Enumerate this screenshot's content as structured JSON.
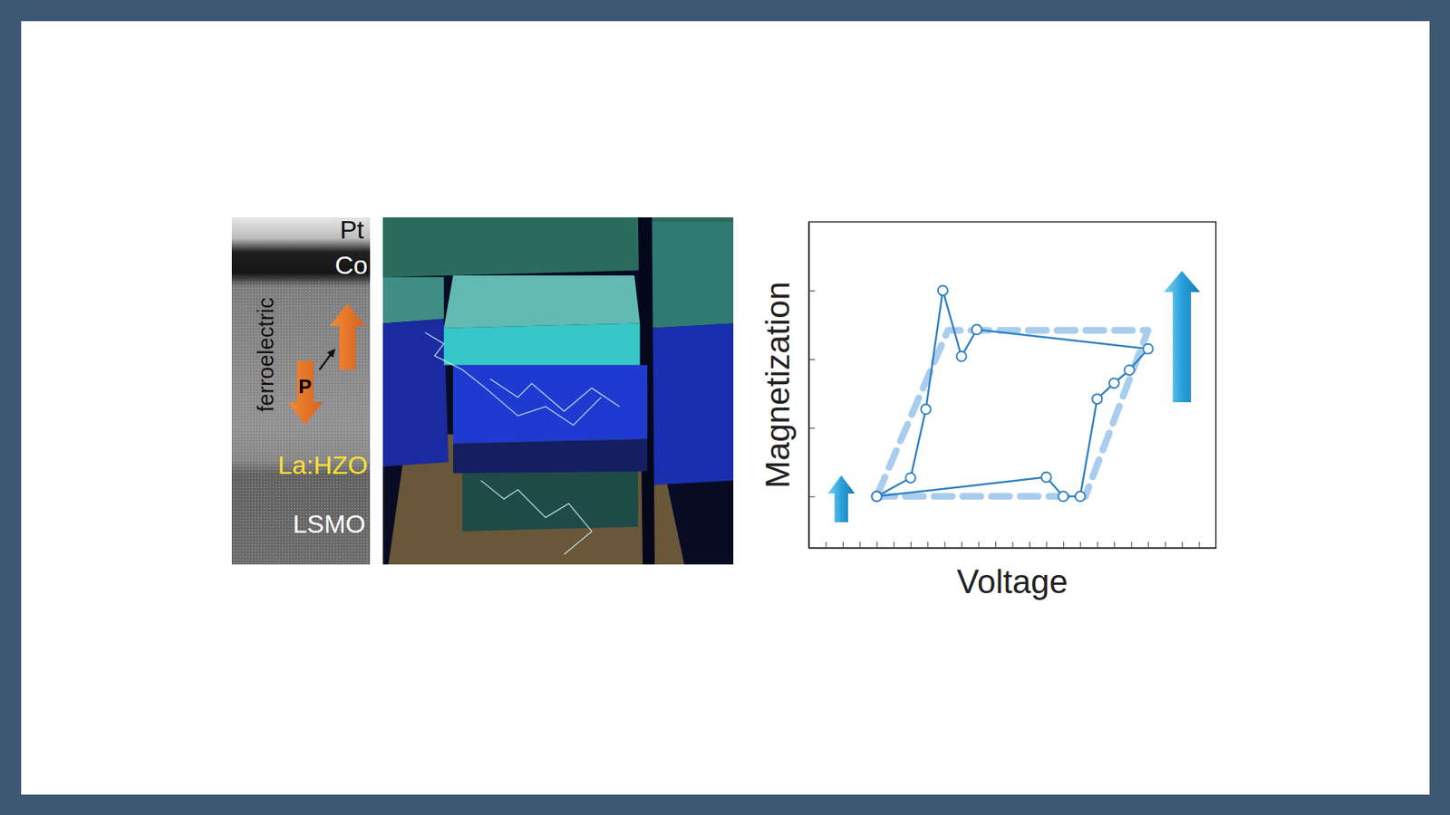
{
  "chart_data": {
    "type": "line",
    "xlabel": "Voltage",
    "ylabel": "Magnetization",
    "xlim": [
      -12,
      12
    ],
    "xticks": [
      -11,
      -10,
      -9,
      -8,
      -7,
      -6,
      -5,
      -4,
      -3,
      -2,
      -1,
      0,
      1,
      2,
      3,
      4,
      5,
      6,
      7,
      8,
      9,
      10,
      11
    ],
    "ylim": [
      -0.75,
      4
    ],
    "yticks": [
      0,
      1,
      2,
      3
    ],
    "tick_labels": false,
    "grid": false,
    "series": [
      {
        "x": [
          -8,
          4.3,
          8,
          -3.8,
          -8
        ],
        "values": [
          0,
          0,
          2.42,
          2.42,
          0
        ],
        "color": "#a9cdee",
        "line_style": "dashed",
        "marker": "none"
      },
      {
        "x": [
          -8,
          -6,
          -5.1,
          -4.1,
          -3,
          -2.1,
          8,
          6.9,
          6,
          5,
          4,
          3,
          2,
          -8
        ],
        "values": [
          0,
          0.27,
          1.27,
          3.0,
          2.04,
          2.43,
          2.15,
          1.84,
          1.65,
          1.42,
          0,
          0,
          0.28,
          0
        ],
        "color": "#2f7fc1",
        "line_style": "solid",
        "marker": "circle"
      }
    ]
  },
  "figure": {
    "layers": [
      "Pt",
      "Co",
      "La:HZO",
      "LSMO"
    ],
    "side_label": "ferroelectric",
    "polarization_label": "P"
  }
}
